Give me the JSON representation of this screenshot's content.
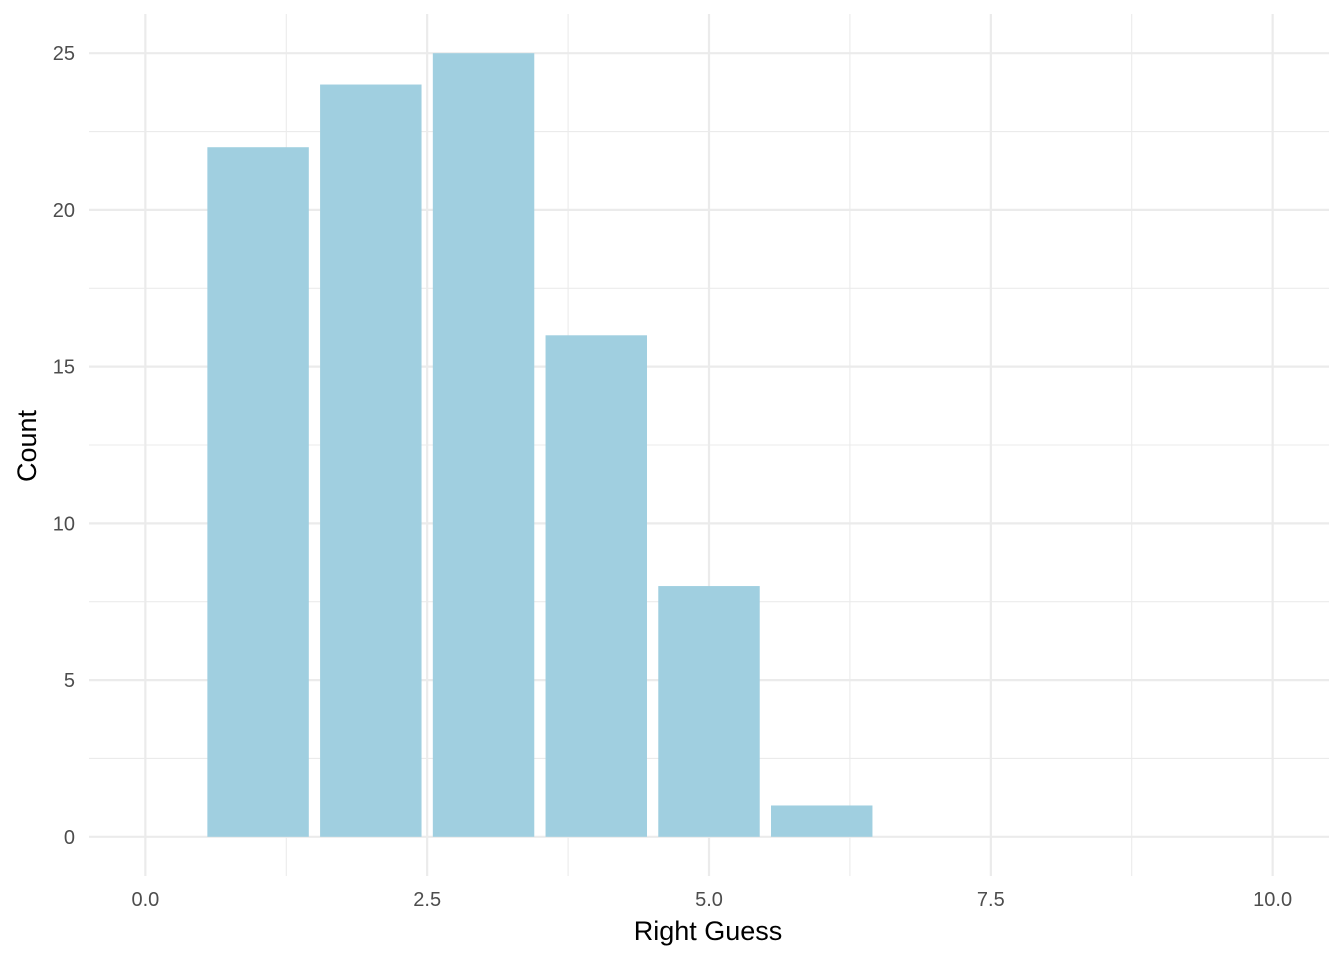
{
  "chart_data": {
    "type": "bar",
    "title": "",
    "xlabel": "Right Guess",
    "ylabel": "Count",
    "x": [
      1,
      2,
      3,
      4,
      5,
      6
    ],
    "values": [
      22,
      24,
      25,
      16,
      8,
      1
    ],
    "bar_width": 0.9,
    "xlim": [
      -0.5,
      10.5
    ],
    "ylim": [
      -1.25,
      26.25
    ],
    "x_ticks": [
      0,
      2.5,
      5,
      7.5,
      10
    ],
    "x_tick_labels": [
      "0.0",
      "2.5",
      "5.0",
      "7.5",
      "10.0"
    ],
    "y_ticks": [
      0,
      5,
      10,
      15,
      20,
      25
    ],
    "y_tick_labels": [
      "0",
      "5",
      "10",
      "15",
      "20",
      "25"
    ],
    "grid": true,
    "legend": "none",
    "colors": {
      "bar": "#a0cfe0",
      "grid": "#ebebeb",
      "background": "#ffffff"
    }
  }
}
